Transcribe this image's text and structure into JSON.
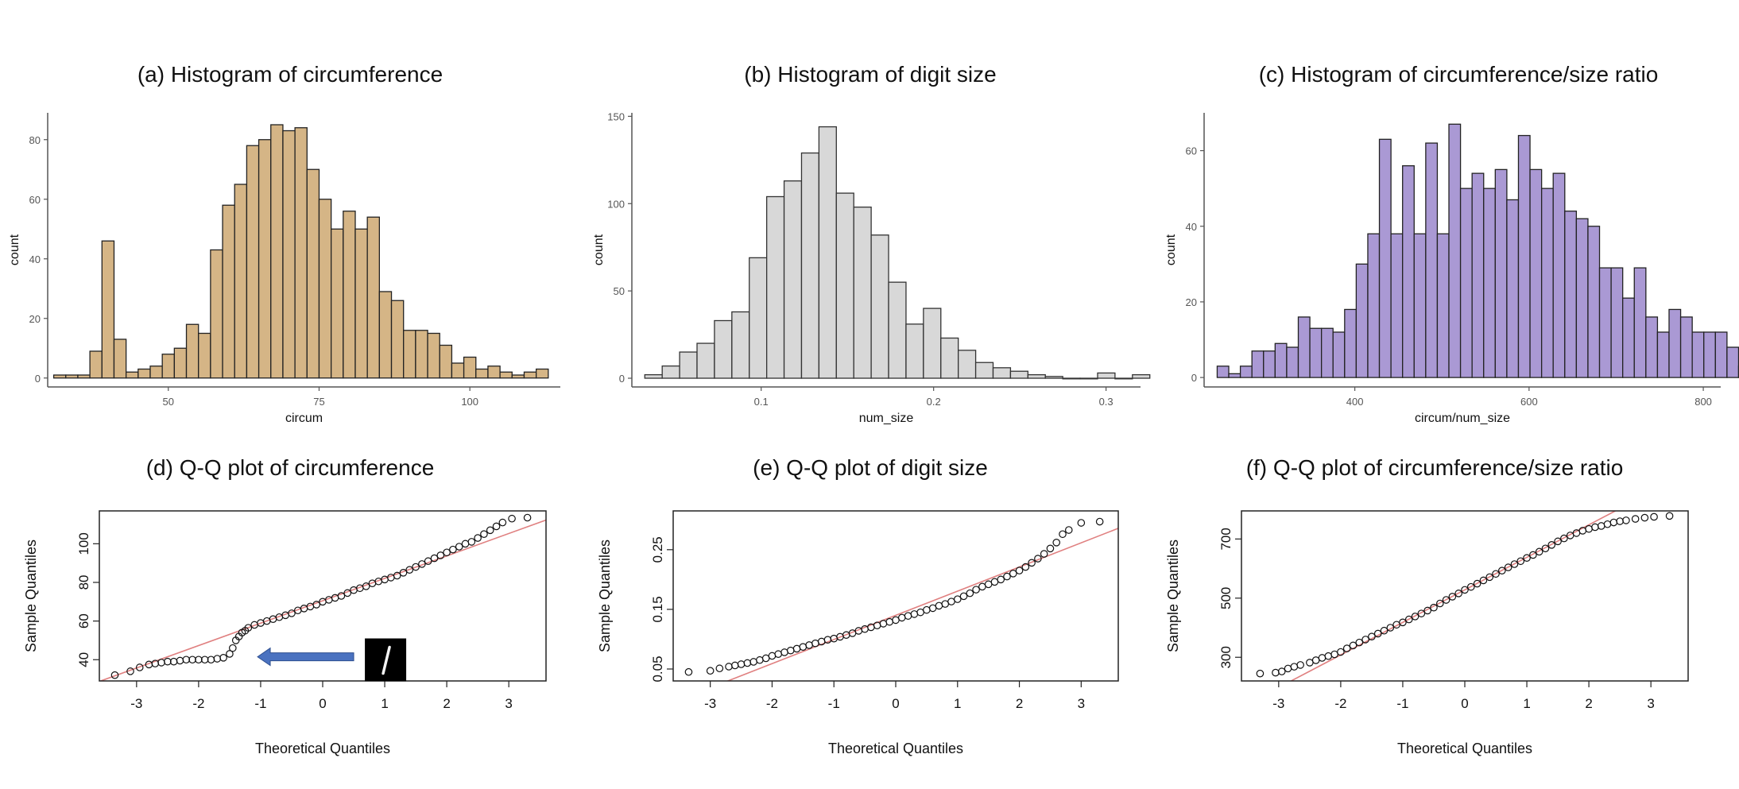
{
  "panels": [
    {
      "title": "(a) Histogram of circumference"
    },
    {
      "title": "(b) Histogram of digit size"
    },
    {
      "title": "(c) Histogram of circumference/size ratio"
    },
    {
      "title": "(d) Q-Q plot of circumference"
    },
    {
      "title": "(e) Q-Q plot of digit size"
    },
    {
      "title": "(f) Q-Q plot of circumference/size ratio"
    }
  ],
  "chart_data": [
    {
      "type": "bar",
      "title": "(a) Histogram of circumference",
      "xlabel": "circum",
      "ylabel": "count",
      "xlim": [
        30,
        115
      ],
      "ylim": [
        -3,
        89
      ],
      "x_ticks": [
        50,
        75,
        100
      ],
      "y_ticks": [
        0,
        20,
        40,
        60,
        80
      ],
      "bin_start": 31,
      "bin_width": 2,
      "values": [
        1,
        1,
        1,
        9,
        46,
        13,
        2,
        3,
        4,
        8,
        10,
        18,
        15,
        43,
        58,
        65,
        78,
        80,
        85,
        83,
        84,
        70,
        60,
        50,
        56,
        50,
        54,
        29,
        26,
        16,
        16,
        15,
        11,
        5,
        7,
        3,
        4,
        2,
        1,
        2,
        3
      ],
      "fill": "#d5b586",
      "stroke": "#222222"
    },
    {
      "type": "bar",
      "title": "(b) Histogram of digit size",
      "xlabel": "num_size",
      "ylabel": "count",
      "xlim": [
        0.025,
        0.32
      ],
      "ylim": [
        -5,
        152
      ],
      "x_ticks": [
        0.1,
        0.2,
        0.3
      ],
      "y_ticks": [
        0,
        50,
        100,
        150
      ],
      "bin_start": 0.0325,
      "bin_width": 0.0101,
      "values": [
        2,
        7,
        15,
        20,
        33,
        38,
        69,
        104,
        113,
        129,
        144,
        106,
        98,
        82,
        55,
        31,
        40,
        23,
        16,
        9,
        6,
        4,
        2,
        1,
        0,
        0,
        3,
        0,
        2
      ],
      "fill": "#d8d8d8",
      "stroke": "#333333"
    },
    {
      "type": "bar",
      "title": "(c) Histogram of circumference/size ratio",
      "xlabel": "circum/num_size",
      "ylabel": "count",
      "xlim": [
        227,
        820
      ],
      "ylim": [
        -2.5,
        70
      ],
      "x_ticks": [
        400,
        600,
        800
      ],
      "y_ticks": [
        0,
        20,
        40,
        60
      ],
      "bin_start": 242,
      "bin_width": 13.3,
      "values": [
        3,
        1,
        3,
        7,
        7,
        9,
        8,
        16,
        13,
        13,
        12,
        18,
        30,
        38,
        63,
        38,
        56,
        38,
        62,
        38,
        67,
        50,
        54,
        50,
        55,
        47,
        64,
        55,
        50,
        54,
        44,
        42,
        40,
        29,
        29,
        21,
        29,
        16,
        12,
        18,
        16,
        12,
        12,
        12,
        8,
        3,
        2
      ],
      "fill": "#aa99d4",
      "stroke": "#222222"
    },
    {
      "type": "scatter",
      "title": "(d) Q-Q plot of circumference",
      "xlabel": "Theoretical Quantiles",
      "ylabel": "Sample Quantiles",
      "xlim": [
        -3.6,
        3.6
      ],
      "ylim": [
        29,
        117
      ],
      "x_ticks": [
        -3,
        -2,
        -1,
        0,
        1,
        2,
        3
      ],
      "y_ticks": [
        40,
        60,
        80,
        100
      ],
      "reference_line": {
        "intercept": 70.5,
        "slope": 11.6
      },
      "points": [
        [
          -3.35,
          32
        ],
        [
          -3.1,
          34
        ],
        [
          -2.95,
          36
        ],
        [
          -2.8,
          37.5
        ],
        [
          -2.7,
          38
        ],
        [
          -2.6,
          38.5
        ],
        [
          -2.5,
          39
        ],
        [
          -2.4,
          39
        ],
        [
          -2.3,
          39.5
        ],
        [
          -2.2,
          40
        ],
        [
          -2.1,
          40
        ],
        [
          -2.0,
          40
        ],
        [
          -1.9,
          40
        ],
        [
          -1.8,
          40
        ],
        [
          -1.7,
          40.5
        ],
        [
          -1.6,
          41
        ],
        [
          -1.5,
          43
        ],
        [
          -1.45,
          46
        ],
        [
          -1.4,
          50
        ],
        [
          -1.35,
          52
        ],
        [
          -1.3,
          54
        ],
        [
          -1.25,
          55
        ],
        [
          -1.2,
          56.5
        ],
        [
          -1.1,
          58
        ],
        [
          -1.0,
          59
        ],
        [
          -0.9,
          60
        ],
        [
          -0.8,
          61
        ],
        [
          -0.7,
          62
        ],
        [
          -0.6,
          63
        ],
        [
          -0.5,
          64
        ],
        [
          -0.4,
          65.5
        ],
        [
          -0.3,
          66.5
        ],
        [
          -0.2,
          67.5
        ],
        [
          -0.1,
          68.5
        ],
        [
          0.0,
          70
        ],
        [
          0.1,
          71
        ],
        [
          0.2,
          72
        ],
        [
          0.3,
          73
        ],
        [
          0.4,
          74.5
        ],
        [
          0.5,
          76
        ],
        [
          0.6,
          77
        ],
        [
          0.7,
          78
        ],
        [
          0.8,
          79.5
        ],
        [
          0.9,
          80.5
        ],
        [
          1.0,
          81.5
        ],
        [
          1.1,
          82.5
        ],
        [
          1.2,
          83.5
        ],
        [
          1.3,
          85
        ],
        [
          1.4,
          86.5
        ],
        [
          1.5,
          88
        ],
        [
          1.6,
          89.5
        ],
        [
          1.7,
          91
        ],
        [
          1.8,
          92.5
        ],
        [
          1.9,
          94
        ],
        [
          2.0,
          95.5
        ],
        [
          2.1,
          97
        ],
        [
          2.2,
          98.5
        ],
        [
          2.3,
          100
        ],
        [
          2.4,
          101
        ],
        [
          2.5,
          103
        ],
        [
          2.6,
          105
        ],
        [
          2.7,
          107
        ],
        [
          2.8,
          109
        ],
        [
          2.9,
          111
        ],
        [
          3.05,
          113
        ],
        [
          3.3,
          113.5
        ]
      ],
      "annotation": {
        "arrow": true,
        "inset": "digit-1-thumbnail"
      },
      "line_color": "#e08080"
    },
    {
      "type": "scatter",
      "title": "(e) Q-Q plot of digit size",
      "xlabel": "Theoretical Quantiles",
      "ylabel": "Sample Quantiles",
      "xlim": [
        -3.6,
        3.6
      ],
      "ylim": [
        0.03,
        0.315
      ],
      "x_ticks": [
        -3,
        -2,
        -1,
        0,
        1,
        2,
        3
      ],
      "y_ticks": [
        0.05,
        0.15,
        0.25
      ],
      "reference_line": {
        "intercept": 0.14,
        "slope": 0.0405
      },
      "points": [
        [
          -3.35,
          0.045
        ],
        [
          -3.0,
          0.047
        ],
        [
          -2.85,
          0.051
        ],
        [
          -2.7,
          0.054
        ],
        [
          -2.6,
          0.056
        ],
        [
          -2.5,
          0.058
        ],
        [
          -2.4,
          0.06
        ],
        [
          -2.3,
          0.062
        ],
        [
          -2.2,
          0.065
        ],
        [
          -2.1,
          0.068
        ],
        [
          -2.0,
          0.072
        ],
        [
          -1.9,
          0.075
        ],
        [
          -1.8,
          0.078
        ],
        [
          -1.7,
          0.081
        ],
        [
          -1.6,
          0.084
        ],
        [
          -1.5,
          0.087
        ],
        [
          -1.4,
          0.09
        ],
        [
          -1.3,
          0.093
        ],
        [
          -1.2,
          0.096
        ],
        [
          -1.1,
          0.099
        ],
        [
          -1.0,
          0.101
        ],
        [
          -0.9,
          0.104
        ],
        [
          -0.8,
          0.107
        ],
        [
          -0.7,
          0.11
        ],
        [
          -0.6,
          0.114
        ],
        [
          -0.5,
          0.117
        ],
        [
          -0.4,
          0.12
        ],
        [
          -0.3,
          0.123
        ],
        [
          -0.2,
          0.126
        ],
        [
          -0.1,
          0.129
        ],
        [
          0.0,
          0.132
        ],
        [
          0.1,
          0.136
        ],
        [
          0.2,
          0.139
        ],
        [
          0.3,
          0.142
        ],
        [
          0.4,
          0.145
        ],
        [
          0.5,
          0.149
        ],
        [
          0.6,
          0.152
        ],
        [
          0.7,
          0.156
        ],
        [
          0.8,
          0.159
        ],
        [
          0.9,
          0.163
        ],
        [
          1.0,
          0.167
        ],
        [
          1.1,
          0.172
        ],
        [
          1.2,
          0.177
        ],
        [
          1.3,
          0.183
        ],
        [
          1.4,
          0.188
        ],
        [
          1.5,
          0.192
        ],
        [
          1.6,
          0.196
        ],
        [
          1.7,
          0.2
        ],
        [
          1.8,
          0.205
        ],
        [
          1.9,
          0.21
        ],
        [
          2.0,
          0.215
        ],
        [
          2.1,
          0.221
        ],
        [
          2.2,
          0.228
        ],
        [
          2.3,
          0.235
        ],
        [
          2.4,
          0.243
        ],
        [
          2.5,
          0.252
        ],
        [
          2.6,
          0.262
        ],
        [
          2.7,
          0.276
        ],
        [
          2.8,
          0.283
        ],
        [
          3.0,
          0.295
        ],
        [
          3.3,
          0.297
        ]
      ],
      "line_color": "#e08080"
    },
    {
      "type": "scatter",
      "title": "(f) Q-Q plot of circumference/size ratio",
      "xlabel": "Theoretical Quantiles",
      "ylabel": "Sample Quantiles",
      "xlim": [
        -3.6,
        3.6
      ],
      "ylim": [
        220,
        795
      ],
      "x_ticks": [
        -3,
        -2,
        -1,
        0,
        1,
        2,
        3
      ],
      "y_ticks": [
        300,
        500,
        700
      ],
      "reference_line": {
        "intercept": 528,
        "slope": 110
      },
      "points": [
        [
          -3.3,
          245
        ],
        [
          -3.05,
          248
        ],
        [
          -2.95,
          252
        ],
        [
          -2.85,
          262
        ],
        [
          -2.75,
          268
        ],
        [
          -2.65,
          274
        ],
        [
          -2.5,
          282
        ],
        [
          -2.4,
          290
        ],
        [
          -2.3,
          298
        ],
        [
          -2.2,
          304
        ],
        [
          -2.1,
          310
        ],
        [
          -2.0,
          318
        ],
        [
          -1.9,
          330
        ],
        [
          -1.8,
          340
        ],
        [
          -1.7,
          350
        ],
        [
          -1.6,
          360
        ],
        [
          -1.5,
          370
        ],
        [
          -1.4,
          380
        ],
        [
          -1.3,
          390
        ],
        [
          -1.2,
          400
        ],
        [
          -1.1,
          410
        ],
        [
          -1.0,
          418
        ],
        [
          -0.9,
          428
        ],
        [
          -0.8,
          438
        ],
        [
          -0.7,
          448
        ],
        [
          -0.6,
          458
        ],
        [
          -0.5,
          468
        ],
        [
          -0.4,
          482
        ],
        [
          -0.3,
          494
        ],
        [
          -0.2,
          505
        ],
        [
          -0.1,
          516
        ],
        [
          0.0,
          528
        ],
        [
          0.1,
          538
        ],
        [
          0.2,
          549
        ],
        [
          0.3,
          560
        ],
        [
          0.4,
          571
        ],
        [
          0.5,
          582
        ],
        [
          0.6,
          593
        ],
        [
          0.7,
          604
        ],
        [
          0.8,
          615
        ],
        [
          0.9,
          625
        ],
        [
          1.0,
          636
        ],
        [
          1.1,
          646
        ],
        [
          1.2,
          657
        ],
        [
          1.3,
          668
        ],
        [
          1.4,
          680
        ],
        [
          1.5,
          692
        ],
        [
          1.6,
          702
        ],
        [
          1.7,
          712
        ],
        [
          1.8,
          720
        ],
        [
          1.9,
          728
        ],
        [
          2.0,
          734
        ],
        [
          2.1,
          740
        ],
        [
          2.2,
          744
        ],
        [
          2.3,
          750
        ],
        [
          2.4,
          756
        ],
        [
          2.5,
          760
        ],
        [
          2.6,
          763
        ],
        [
          2.75,
          768
        ],
        [
          2.9,
          772
        ],
        [
          3.05,
          775
        ],
        [
          3.3,
          778
        ]
      ],
      "line_color": "#e08080"
    }
  ]
}
